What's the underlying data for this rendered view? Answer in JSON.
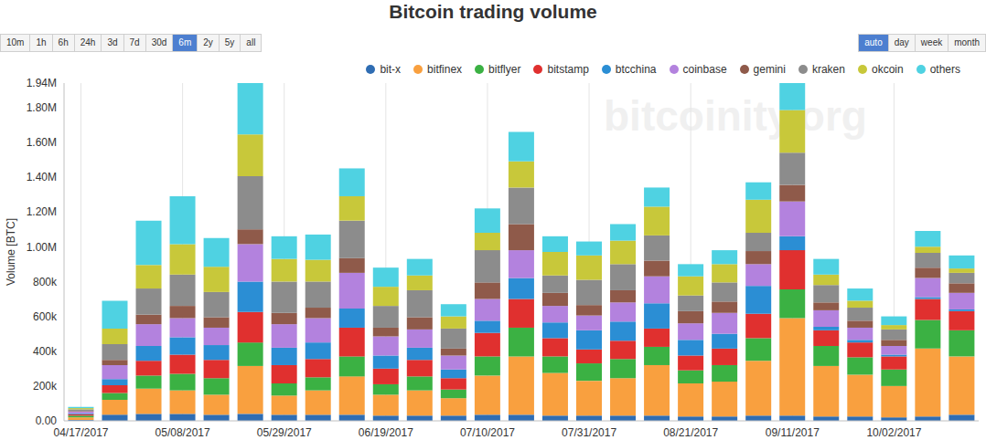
{
  "chart_data": {
    "type": "bar",
    "title": "Bitcoin trading volume",
    "y_label": "Volume [BTC]",
    "watermark": "bitcoinity.org",
    "stacked": true,
    "grid": true,
    "legend": "top-right",
    "categories": [
      "04/17/2017",
      null,
      null,
      "05/08/2017",
      null,
      null,
      "05/29/2017",
      null,
      null,
      "06/19/2017",
      null,
      null,
      "07/10/2017",
      null,
      null,
      "07/31/2017",
      null,
      null,
      "08/21/2017",
      null,
      null,
      "09/11/2017",
      null,
      null,
      "10/02/2017",
      null,
      null
    ],
    "ylim": [
      0,
      1940000
    ],
    "yticks": [
      {
        "value": 0,
        "label": "0.00"
      },
      {
        "value": 200000,
        "label": "200k"
      },
      {
        "value": 400000,
        "label": "400k"
      },
      {
        "value": 600000,
        "label": "600k"
      },
      {
        "value": 800000,
        "label": "800k"
      },
      {
        "value": 1000000,
        "label": "1.00M"
      },
      {
        "value": 1200000,
        "label": "1.20M"
      },
      {
        "value": 1400000,
        "label": "1.40M"
      },
      {
        "value": 1600000,
        "label": "1.60M"
      },
      {
        "value": 1800000,
        "label": "1.80M"
      },
      {
        "value": 1940000,
        "label": "1.94M"
      }
    ],
    "series": [
      {
        "name": "bit-x",
        "color": "#2f6db3",
        "values": [
          5000,
          35000,
          40000,
          40000,
          35000,
          40000,
          35000,
          35000,
          35000,
          30000,
          30000,
          30000,
          35000,
          35000,
          30000,
          30000,
          30000,
          30000,
          25000,
          25000,
          30000,
          30000,
          25000,
          25000,
          20000,
          25000,
          35000
        ]
      },
      {
        "name": "bitfinex",
        "color": "#f9a03f",
        "values": [
          15000,
          85000,
          145000,
          135000,
          115000,
          275000,
          110000,
          140000,
          220000,
          120000,
          145000,
          100000,
          225000,
          335000,
          245000,
          200000,
          215000,
          290000,
          190000,
          200000,
          315000,
          560000,
          290000,
          240000,
          180000,
          390000,
          335000
        ]
      },
      {
        "name": "bitflyer",
        "color": "#3bb143",
        "values": [
          10000,
          40000,
          75000,
          95000,
          95000,
          135000,
          70000,
          75000,
          115000,
          60000,
          80000,
          50000,
          110000,
          165000,
          95000,
          100000,
          110000,
          105000,
          75000,
          95000,
          130000,
          165000,
          115000,
          100000,
          95000,
          165000,
          150000
        ]
      },
      {
        "name": "bitstamp",
        "color": "#e0302f",
        "values": [
          8000,
          45000,
          85000,
          110000,
          105000,
          175000,
          105000,
          105000,
          165000,
          90000,
          95000,
          65000,
          135000,
          165000,
          105000,
          80000,
          105000,
          105000,
          85000,
          95000,
          140000,
          225000,
          90000,
          85000,
          75000,
          120000,
          110000
        ]
      },
      {
        "name": "btcchina",
        "color": "#2b8ed4",
        "values": [
          5000,
          35000,
          85000,
          100000,
          85000,
          175000,
          100000,
          95000,
          110000,
          75000,
          70000,
          50000,
          70000,
          120000,
          90000,
          110000,
          110000,
          145000,
          90000,
          85000,
          160000,
          80000,
          20000,
          15000,
          10000,
          10000,
          10000
        ]
      },
      {
        "name": "coinbase",
        "color": "#b382de",
        "values": [
          10000,
          80000,
          125000,
          110000,
          100000,
          215000,
          135000,
          140000,
          205000,
          110000,
          105000,
          80000,
          125000,
          160000,
          95000,
          85000,
          110000,
          155000,
          95000,
          120000,
          125000,
          200000,
          95000,
          70000,
          50000,
          110000,
          95000
        ]
      },
      {
        "name": "gemini",
        "color": "#8f5a4a",
        "values": [
          3000,
          30000,
          55000,
          70000,
          60000,
          85000,
          65000,
          60000,
          85000,
          50000,
          70000,
          40000,
          95000,
          150000,
          75000,
          60000,
          70000,
          90000,
          70000,
          65000,
          75000,
          95000,
          45000,
          40000,
          35000,
          60000,
          55000
        ]
      },
      {
        "name": "kraken",
        "color": "#8c8c8c",
        "values": [
          10000,
          90000,
          150000,
          180000,
          145000,
          305000,
          180000,
          150000,
          215000,
          125000,
          155000,
          115000,
          185000,
          210000,
          100000,
          145000,
          150000,
          145000,
          90000,
          110000,
          105000,
          185000,
          100000,
          75000,
          60000,
          85000,
          60000
        ]
      },
      {
        "name": "okcoin",
        "color": "#c8c83a",
        "values": [
          7000,
          90000,
          135000,
          175000,
          145000,
          240000,
          130000,
          125000,
          140000,
          110000,
          85000,
          70000,
          100000,
          150000,
          135000,
          140000,
          135000,
          165000,
          110000,
          105000,
          190000,
          245000,
          60000,
          40000,
          25000,
          35000,
          25000
        ]
      },
      {
        "name": "others",
        "color": "#4fd2e2",
        "values": [
          7000,
          160000,
          255000,
          275000,
          165000,
          295000,
          130000,
          145000,
          160000,
          110000,
          95000,
          70000,
          140000,
          170000,
          90000,
          80000,
          95000,
          110000,
          70000,
          80000,
          100000,
          155000,
          90000,
          70000,
          50000,
          90000,
          75000
        ]
      }
    ]
  },
  "controls": {
    "ranges": [
      "10m",
      "1h",
      "6h",
      "24h",
      "3d",
      "7d",
      "30d",
      "6m",
      "2y",
      "5y",
      "all"
    ],
    "selected_range": "6m",
    "periods": [
      "auto",
      "day",
      "week",
      "month"
    ],
    "selected_period": "auto"
  }
}
